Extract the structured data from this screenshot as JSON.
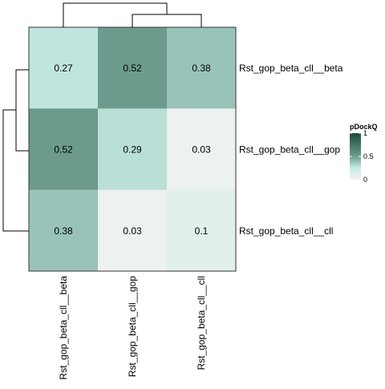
{
  "chart_data": {
    "type": "heatmap",
    "title": "",
    "rows": [
      "Rst_gop_beta_cll__beta",
      "Rst_gop_beta_cll__gop",
      "Rst_gop_beta_cll__cll"
    ],
    "columns": [
      "Rst_gop_beta_cll__beta",
      "Rst_gop_beta_cll__gop",
      "Rst_gop_beta_cll__cll"
    ],
    "values": [
      [
        0.27,
        0.52,
        0.38
      ],
      [
        0.52,
        0.29,
        0.03
      ],
      [
        0.38,
        0.03,
        0.1
      ]
    ],
    "value_labels": [
      [
        "0.27",
        "0.52",
        "0.38"
      ],
      [
        "0.52",
        "0.29",
        "0.03"
      ],
      [
        "0.38",
        "0.03",
        "0.1"
      ]
    ],
    "color_scale": {
      "title": "pDockQ",
      "min": 0,
      "max": 1,
      "ticks": [
        {
          "value": 0,
          "label": "0"
        },
        {
          "value": 0.5,
          "label": "0.5"
        },
        {
          "value": 1,
          "label": "1"
        }
      ],
      "colors": [
        "#f2f2f2",
        "#c7ebe5",
        "#6f9e90",
        "#1f4a3d"
      ],
      "stops": [
        0,
        0.25,
        0.5,
        1
      ]
    },
    "legend_position": "right",
    "dendrograms": {
      "rows": "left",
      "columns": "top"
    },
    "colors": {
      "border": "#333333",
      "dendrogram": "#000000",
      "text": "#000000"
    }
  }
}
